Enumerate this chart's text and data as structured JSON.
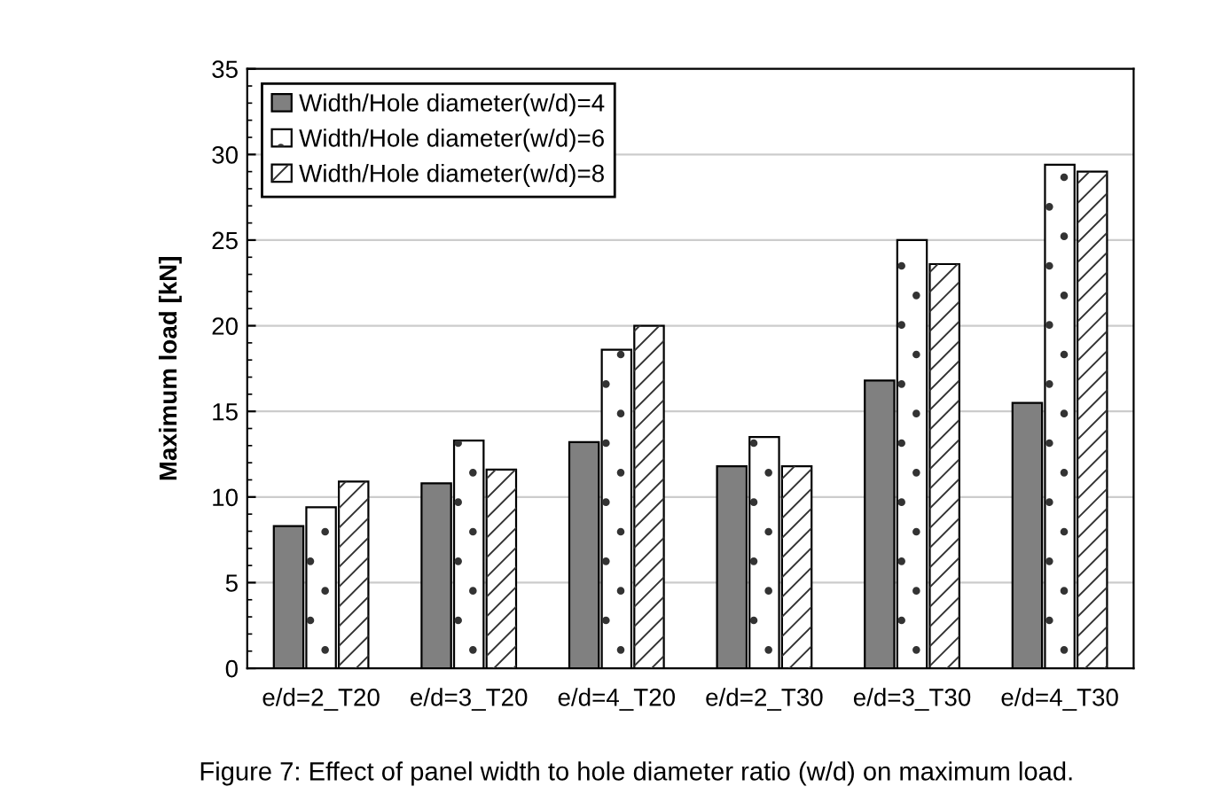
{
  "chart_data": {
    "type": "bar",
    "ylabel": "Maximum load [kN]",
    "categories": [
      "e/d=2_T20",
      "e/d=3_T20",
      "e/d=4_T20",
      "e/d=2_T30",
      "e/d=3_T30",
      "e/d=4_T30"
    ],
    "series": [
      {
        "name": "Width/Hole diameter(w/d)=4",
        "color": "#808080",
        "values": [
          8.3,
          10.8,
          13.2,
          11.8,
          16.8,
          15.5
        ]
      },
      {
        "name": "Width/Hole diameter(w/d)=6",
        "color": "#ffffff",
        "values": [
          9.4,
          13.3,
          18.6,
          13.5,
          25.0,
          29.4
        ]
      },
      {
        "name": "Width/Hole diameter(w/d)=8",
        "color": "#ffffff",
        "values": [
          10.9,
          11.6,
          20.0,
          11.8,
          23.6,
          29.0
        ]
      }
    ],
    "ylim": [
      0,
      35
    ],
    "yticks": [
      0,
      5,
      10,
      15,
      20,
      25,
      30,
      35
    ],
    "grid": "y",
    "legend": "top left",
    "annotations": [
      "Figure 7: Effect of panel width to hole diameter ratio (w/d) on maximum load."
    ]
  }
}
